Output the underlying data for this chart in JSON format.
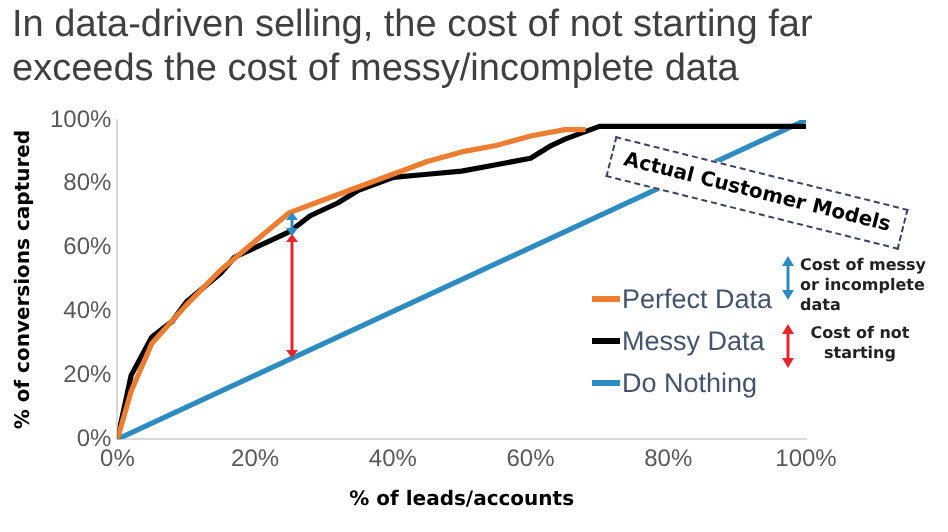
{
  "chart_data": {
    "type": "line",
    "title": "In data-driven selling, the cost of not starting far exceeds the cost of messy/incomplete data",
    "xlabel": "% of leads/accounts",
    "ylabel": "% of conversions captured",
    "xlim": [
      0,
      100
    ],
    "ylim": [
      0,
      100
    ],
    "xticks": [
      {
        "value": 0,
        "label": "0%"
      },
      {
        "value": 20,
        "label": "20%"
      },
      {
        "value": 40,
        "label": "40%"
      },
      {
        "value": 60,
        "label": "60%"
      },
      {
        "value": 80,
        "label": "80%"
      },
      {
        "value": 100,
        "label": "100%"
      }
    ],
    "yticks": [
      {
        "value": 0,
        "label": "0%"
      },
      {
        "value": 20,
        "label": "20%"
      },
      {
        "value": 40,
        "label": "40%"
      },
      {
        "value": 60,
        "label": "60%"
      },
      {
        "value": 80,
        "label": "80%"
      },
      {
        "value": 100,
        "label": "100%"
      }
    ],
    "series": [
      {
        "name": "Perfect Data",
        "color": "#ed7d31",
        "x": [
          0,
          2,
          5,
          10,
          15,
          20,
          25,
          30,
          35,
          40,
          45,
          50,
          55,
          60,
          65,
          68
        ],
        "values": [
          0,
          15,
          30,
          42,
          53,
          62,
          71,
          75,
          79,
          83,
          87,
          90,
          92,
          95,
          97,
          97
        ]
      },
      {
        "name": "Messy Data",
        "color": "#000000",
        "x": [
          0,
          1,
          2,
          5,
          8,
          10,
          15,
          17,
          20,
          23,
          25,
          28,
          32,
          35,
          40,
          45,
          50,
          55,
          60,
          63,
          65,
          70,
          80,
          100
        ],
        "values": [
          0,
          10,
          20,
          32,
          37,
          43,
          52,
          57,
          60,
          63,
          65,
          70,
          74,
          78,
          82,
          83,
          84,
          86,
          88,
          92,
          94,
          98,
          98,
          98
        ]
      },
      {
        "name": "Do Nothing",
        "color": "#2e8bc0",
        "x": [
          0,
          100
        ],
        "values": [
          0,
          100
        ]
      }
    ],
    "annotations": [
      "Actual Customer Models",
      "Cost of messy or incomplete data",
      "Cost of not starting"
    ],
    "legend": "right",
    "grid": false,
    "marker": "none",
    "line_style": "solid"
  }
}
